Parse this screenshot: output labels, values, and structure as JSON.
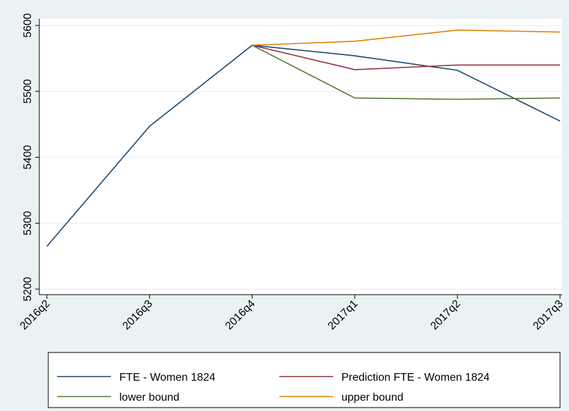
{
  "chart_data": {
    "type": "line",
    "categories": [
      "2016q2",
      "2016q3",
      "2016q4",
      "2017q1",
      "2017q2",
      "2017q3"
    ],
    "series": [
      {
        "name": "FTE - Women 1824",
        "color": "#1a476f",
        "values": [
          5265,
          5447,
          5570,
          5554,
          5532,
          5455
        ]
      },
      {
        "name": "Prediction FTE - Women 1824",
        "color": "#90353b",
        "values": [
          null,
          null,
          5570,
          5533,
          5540,
          5540
        ]
      },
      {
        "name": "lower bound",
        "color": "#55752f",
        "values": [
          null,
          null,
          5570,
          5490,
          5488,
          5490
        ]
      },
      {
        "name": "upper bound",
        "color": "#e37e00",
        "values": [
          null,
          null,
          5570,
          5576,
          5593,
          5590
        ]
      }
    ],
    "ylim": [
      5200,
      5600
    ],
    "yticks": [
      5200,
      5300,
      5400,
      5500,
      5600
    ],
    "grid": true
  }
}
